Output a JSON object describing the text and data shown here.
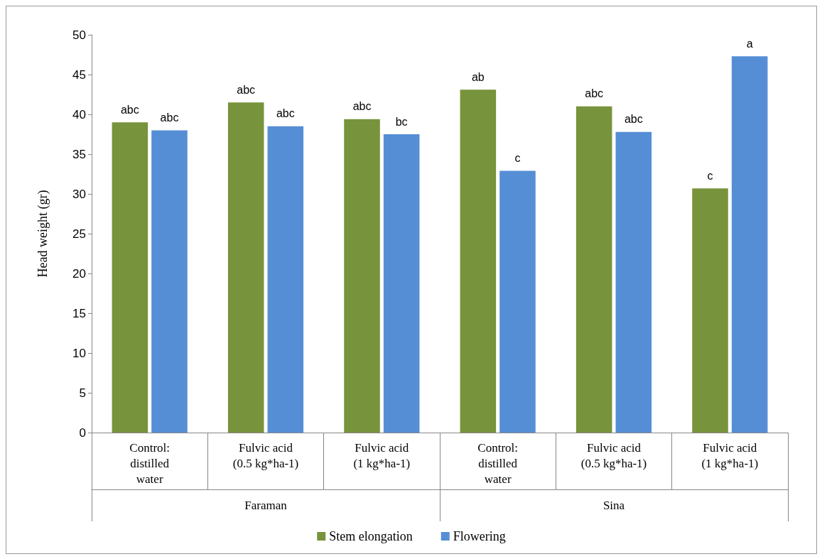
{
  "chart_data": {
    "type": "bar",
    "ylabel": "Head weight (gr)",
    "categories": [
      "Control: distilled water",
      "Fulvic acid (0.5 kg*ha-1)",
      "Fulvic acid (1 kg*ha-1)",
      "Control: distilled water",
      "Fulvic acid (0.5 kg*ha-1)",
      "Fulvic acid (1 kg*ha-1)"
    ],
    "annotations": [
      "Faraman",
      "Sina"
    ],
    "series": [
      {
        "name": "Stem elongation",
        "color": "#77933c",
        "values": [
          39.0,
          41.5,
          39.4,
          43.1,
          41.0,
          30.7
        ],
        "value_labels": [
          "abc",
          "abc",
          "abc",
          "ab",
          "abc",
          "c"
        ]
      },
      {
        "name": "Flowering",
        "color": "#558ed5",
        "values": [
          38.0,
          38.5,
          37.5,
          32.9,
          37.8,
          47.3
        ],
        "value_labels": [
          "abc",
          "abc",
          "bc",
          "c",
          "abc",
          "a"
        ]
      }
    ],
    "ylim": [
      0,
      50
    ],
    "yticks": [
      0,
      5,
      10,
      15,
      20,
      25,
      30,
      35,
      40,
      45,
      50
    ],
    "grid": false,
    "legend": "bottom"
  }
}
